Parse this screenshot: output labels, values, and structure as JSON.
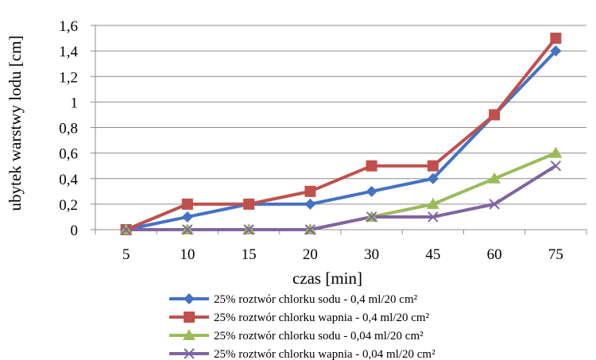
{
  "chart_data": {
    "type": "line",
    "title": "",
    "xlabel": "czas [min]",
    "ylabel": "ubytek warstwy lodu [cm]",
    "categories": [
      "5",
      "10",
      "15",
      "20",
      "30",
      "45",
      "60",
      "75"
    ],
    "ylim": [
      0,
      1.6
    ],
    "yticks": [
      "0",
      "0,2",
      "0,4",
      "0,6",
      "0,8",
      "1",
      "1,2",
      "1,4",
      "1,6"
    ],
    "grid": "horizontal",
    "legend_position": "bottom",
    "series": [
      {
        "name": "25% roztwór chlorku sodu - 0,4 ml/20 cm²",
        "color": "#4472C4",
        "marker": "diamond",
        "values": [
          0,
          0.1,
          0.2,
          0.2,
          0.3,
          0.4,
          0.9,
          1.4
        ]
      },
      {
        "name": "25% roztwór chlorku wapnia - 0,4 ml/20 cm²",
        "color": "#C0504D",
        "marker": "square",
        "values": [
          0,
          0.2,
          0.2,
          0.3,
          0.5,
          0.5,
          0.9,
          1.5
        ]
      },
      {
        "name": "25% roztwór chlorku sodu - 0,04 ml/20 cm²",
        "color": "#9BBB59",
        "marker": "triangle",
        "values": [
          0,
          0,
          0,
          0,
          0.1,
          0.2,
          0.4,
          0.6
        ]
      },
      {
        "name": "25% roztwór chlorku wapnia - 0,04 ml/20 cm²",
        "color": "#8064A2",
        "marker": "x",
        "values": [
          0,
          0,
          0,
          0,
          0.1,
          0.1,
          0.2,
          0.5
        ]
      }
    ]
  }
}
